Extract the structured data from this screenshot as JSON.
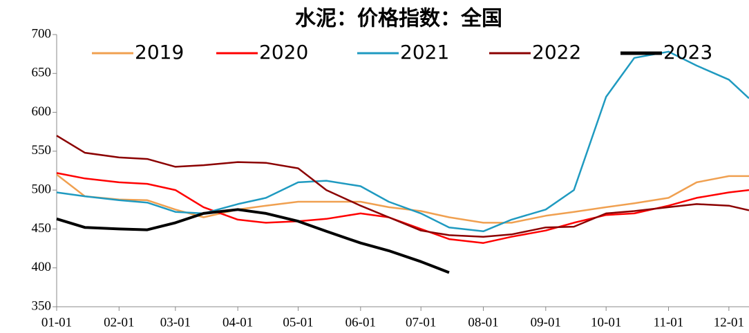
{
  "chart_data": {
    "type": "line",
    "title": "水泥：价格指数：全国",
    "x": [
      "01-01",
      "01-15",
      "02-01",
      "02-15",
      "03-01",
      "03-15",
      "04-01",
      "04-15",
      "05-01",
      "05-15",
      "06-01",
      "06-15",
      "07-01",
      "07-15",
      "08-01",
      "08-15",
      "09-01",
      "09-15",
      "10-01",
      "10-15",
      "11-01",
      "11-15",
      "12-01",
      "12-11"
    ],
    "xlim": [
      "01-01",
      "12-11"
    ],
    "xticks": [
      "01-01",
      "02-01",
      "03-01",
      "04-01",
      "05-01",
      "06-01",
      "07-01",
      "08-01",
      "09-01",
      "10-01",
      "11-01",
      "12-01"
    ],
    "ylim": [
      350,
      700
    ],
    "yticks": [
      350,
      400,
      450,
      500,
      550,
      600,
      650,
      700
    ],
    "series": [
      {
        "name": "2019",
        "color": "#f0a050",
        "values": [
          520,
          492,
          488,
          487,
          475,
          465,
          475,
          480,
          485,
          485,
          485,
          478,
          473,
          465,
          458,
          458,
          467,
          472,
          478,
          483,
          490,
          510,
          518,
          518
        ]
      },
      {
        "name": "2020",
        "color": "#ff0000",
        "values": [
          522,
          515,
          510,
          508,
          500,
          478,
          462,
          458,
          460,
          463,
          470,
          465,
          450,
          437,
          432,
          440,
          448,
          458,
          468,
          470,
          480,
          490,
          497,
          500
        ]
      },
      {
        "name": "2021",
        "color": "#1f9ac0",
        "values": [
          497,
          492,
          487,
          484,
          472,
          470,
          482,
          490,
          510,
          512,
          505,
          485,
          470,
          452,
          447,
          462,
          475,
          500,
          620,
          670,
          678,
          660,
          642,
          618
        ]
      },
      {
        "name": "2022",
        "color": "#8b0000",
        "values": [
          570,
          548,
          542,
          540,
          530,
          532,
          536,
          535,
          528,
          500,
          480,
          465,
          448,
          442,
          440,
          443,
          452,
          453,
          470,
          473,
          478,
          482,
          480,
          474
        ]
      },
      {
        "name": "2023",
        "color": "#000000",
        "values": [
          463,
          452,
          450,
          449,
          458,
          470,
          475,
          470,
          460,
          447,
          432,
          422,
          408,
          394,
          null,
          null,
          null,
          null,
          null,
          null,
          null,
          null,
          null,
          null
        ]
      }
    ]
  }
}
